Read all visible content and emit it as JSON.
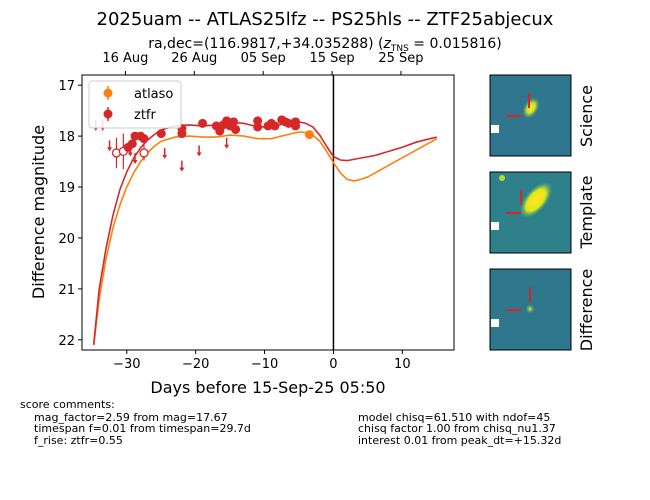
{
  "title": "2025uam -- ATLAS25lfz -- PS25hls -- ZTF25abjecux",
  "subtitle_prefix": "ra,dec=(116.9817,+34.035288) (",
  "subtitle_z": "z",
  "subtitle_z_sub": "TNS",
  "subtitle_suffix": " = 0.015816)",
  "chart_data": {
    "type": "scatter",
    "xlabel": "Days before 15-Sep-25 05:50",
    "ylabel": "Difference magnitude",
    "xlim": [
      -36.5,
      17.5
    ],
    "ylim": [
      22.2,
      16.8
    ],
    "x_ticks": [
      -30,
      -20,
      -10,
      0,
      10
    ],
    "x_tick_labels": [
      "−30",
      "−20",
      "−10",
      "0",
      "10"
    ],
    "y_ticks": [
      17,
      18,
      19,
      20,
      21,
      22
    ],
    "y_tick_labels": [
      "17",
      "18",
      "19",
      "20",
      "21",
      "22"
    ],
    "top_axis_ticks": [
      {
        "x": -30.2,
        "label": "16 Aug"
      },
      {
        "x": -20.2,
        "label": "26 Aug"
      },
      {
        "x": -10.2,
        "label": "05 Sep"
      },
      {
        "x": -0.2,
        "label": "15 Sep"
      },
      {
        "x": 9.8,
        "label": "25 Sep"
      }
    ],
    "vline_x": 0,
    "grid": false,
    "legend_position": "top-left",
    "series": [
      {
        "name": "atlaso",
        "color": "#ff7f0e",
        "detections": [
          {
            "x": -3.5,
            "y": 17.97,
            "err": 0.05
          }
        ],
        "model": [
          [
            -34.8,
            22.1
          ],
          [
            -34.0,
            21.2
          ],
          [
            -33.0,
            20.4
          ],
          [
            -32.0,
            19.8
          ],
          [
            -31.0,
            19.35
          ],
          [
            -30.0,
            19.0
          ],
          [
            -29.0,
            18.72
          ],
          [
            -28.0,
            18.5
          ],
          [
            -27.0,
            18.33
          ],
          [
            -26.0,
            18.2
          ],
          [
            -25.0,
            18.1
          ],
          [
            -23.0,
            18.02
          ],
          [
            -21.0,
            18.0
          ],
          [
            -19.0,
            18.02
          ],
          [
            -17.0,
            18.02
          ],
          [
            -15.0,
            17.98
          ],
          [
            -13.0,
            18.0
          ],
          [
            -11.0,
            18.05
          ],
          [
            -9.0,
            18.05
          ],
          [
            -7.0,
            17.98
          ],
          [
            -5.0,
            17.92
          ],
          [
            -4.0,
            17.93
          ],
          [
            -3.0,
            17.98
          ],
          [
            -2.0,
            18.1
          ],
          [
            -1.0,
            18.3
          ],
          [
            0.0,
            18.52
          ],
          [
            1.0,
            18.72
          ],
          [
            2.0,
            18.85
          ],
          [
            3.0,
            18.88
          ],
          [
            4.0,
            18.85
          ],
          [
            5.0,
            18.8
          ],
          [
            7.0,
            18.65
          ],
          [
            9.0,
            18.5
          ],
          [
            11.0,
            18.35
          ],
          [
            13.0,
            18.2
          ],
          [
            15.0,
            18.05
          ]
        ]
      },
      {
        "name": "ztfr",
        "color": "#d62728",
        "detections": [
          {
            "x": -29.8,
            "y": 18.22,
            "err": 0.05
          },
          {
            "x": -29.2,
            "y": 18.15,
            "err": 0.05
          },
          {
            "x": -28.8,
            "y": 18.0,
            "err": 0.05
          },
          {
            "x": -28.0,
            "y": 18.0,
            "err": 0.05
          },
          {
            "x": -27.5,
            "y": 18.05,
            "err": 0.08
          },
          {
            "x": -25.0,
            "y": 17.95,
            "err": 0.05
          },
          {
            "x": -22.0,
            "y": 17.85,
            "err": 0.05
          },
          {
            "x": -22.0,
            "y": 17.95,
            "err": 0.05
          },
          {
            "x": -19.0,
            "y": 17.75,
            "err": 0.05
          },
          {
            "x": -17.0,
            "y": 17.8,
            "err": 0.05
          },
          {
            "x": -16.5,
            "y": 17.9,
            "err": 0.05
          },
          {
            "x": -16.0,
            "y": 17.78,
            "err": 0.05
          },
          {
            "x": -15.5,
            "y": 17.7,
            "err": 0.05
          },
          {
            "x": -15.0,
            "y": 17.8,
            "err": 0.05
          },
          {
            "x": -14.5,
            "y": 17.72,
            "err": 0.08
          },
          {
            "x": -14.2,
            "y": 17.87,
            "err": 0.05
          },
          {
            "x": -11.0,
            "y": 17.7,
            "err": 0.05
          },
          {
            "x": -11.0,
            "y": 17.82,
            "err": 0.05
          },
          {
            "x": -9.5,
            "y": 17.8,
            "err": 0.05
          },
          {
            "x": -9.0,
            "y": 17.75,
            "err": 0.05
          },
          {
            "x": -8.5,
            "y": 17.8,
            "err": 0.05
          },
          {
            "x": -7.5,
            "y": 17.68,
            "err": 0.05
          },
          {
            "x": -7.0,
            "y": 17.72,
            "err": 0.05
          },
          {
            "x": -6.5,
            "y": 17.75,
            "err": 0.05
          },
          {
            "x": -5.5,
            "y": 17.72,
            "err": 0.05
          },
          {
            "x": -5.5,
            "y": 17.8,
            "err": 0.05
          }
        ],
        "open_points": [
          {
            "x": -31.5,
            "y": 18.33,
            "err": 0.3
          },
          {
            "x": -30.5,
            "y": 18.3,
            "err": 0.35
          },
          {
            "x": -27.5,
            "y": 18.33,
            "err": 0.15
          }
        ],
        "upper_limits": [
          {
            "x": -34.5,
            "y": 17.8
          },
          {
            "x": -33.5,
            "y": 17.8
          },
          {
            "x": -32.5,
            "y": 18.2
          },
          {
            "x": -29.5,
            "y": 18.3
          },
          {
            "x": -28.8,
            "y": 18.45
          },
          {
            "x": -24.5,
            "y": 18.35
          },
          {
            "x": -22.0,
            "y": 18.6
          },
          {
            "x": -19.5,
            "y": 18.3
          },
          {
            "x": -15.5,
            "y": 18.15
          }
        ],
        "model": [
          [
            -34.8,
            22.1
          ],
          [
            -34.0,
            21.0
          ],
          [
            -33.0,
            20.2
          ],
          [
            -32.0,
            19.55
          ],
          [
            -31.0,
            19.05
          ],
          [
            -30.0,
            18.7
          ],
          [
            -29.0,
            18.43
          ],
          [
            -28.0,
            18.23
          ],
          [
            -27.0,
            18.08
          ],
          [
            -26.0,
            17.97
          ],
          [
            -25.0,
            17.88
          ],
          [
            -23.0,
            17.8
          ],
          [
            -21.0,
            17.78
          ],
          [
            -19.0,
            17.8
          ],
          [
            -17.0,
            17.78
          ],
          [
            -15.0,
            17.72
          ],
          [
            -13.0,
            17.75
          ],
          [
            -11.0,
            17.82
          ],
          [
            -9.0,
            17.82
          ],
          [
            -7.0,
            17.75
          ],
          [
            -5.0,
            17.72
          ],
          [
            -4.0,
            17.75
          ],
          [
            -3.0,
            17.82
          ],
          [
            -2.0,
            17.98
          ],
          [
            -1.0,
            18.2
          ],
          [
            0.0,
            18.4
          ],
          [
            1.0,
            18.47
          ],
          [
            2.0,
            18.48
          ],
          [
            4.0,
            18.43
          ],
          [
            6.0,
            18.38
          ],
          [
            8.0,
            18.3
          ],
          [
            10.0,
            18.22
          ],
          [
            12.0,
            18.12
          ],
          [
            14.0,
            18.05
          ],
          [
            15.0,
            18.02
          ]
        ]
      }
    ]
  },
  "stamps": [
    {
      "label": "Science"
    },
    {
      "label": "Template"
    },
    {
      "label": "Difference"
    }
  ],
  "comments": {
    "header": "score comments:",
    "left": [
      "mag_factor=2.59 from mag=17.67",
      "timespan f=0.01 from timespan=29.7d",
      "f_rise: ztfr=0.55"
    ],
    "right": [
      "model chisq=61.510 with ndof=45",
      "chisq factor 1.00 from chisq_nu1.37",
      "interest 0.01 from peak_dt=+15.32d"
    ]
  }
}
